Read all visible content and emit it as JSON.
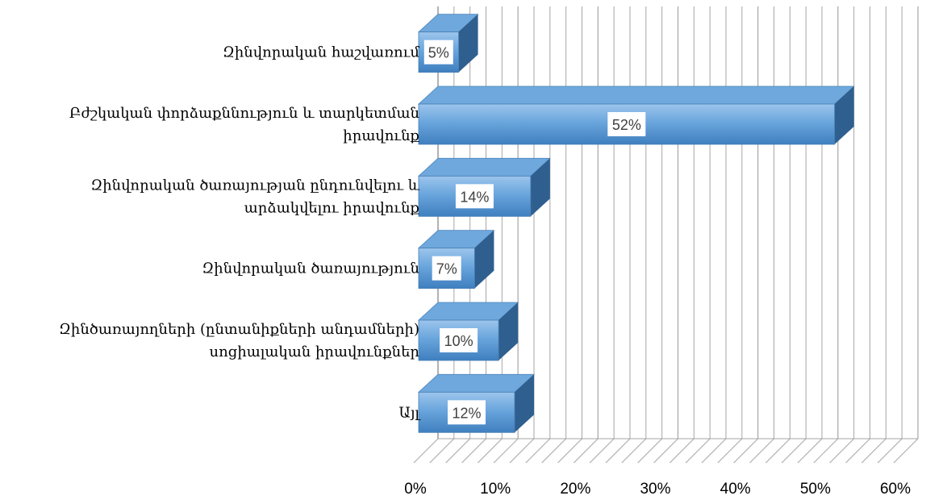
{
  "chart_data": {
    "type": "bar",
    "orientation": "horizontal",
    "three_d": true,
    "categories": [
      [
        "Զինվորական հաշվառում"
      ],
      [
        "Բժշկական փորձաքննություն և տարկետման",
        "իրավունք"
      ],
      [
        "Զինվորական ծառայության ընդունվելու և",
        "արձակվելու իրավունք"
      ],
      [
        "Զինվորական ծառայություն"
      ],
      [
        "Զինծառայողների (ընտանիքների անդամների)",
        "սոցիալական իրավունքներ"
      ],
      [
        "Այլ"
      ]
    ],
    "values": [
      5,
      52,
      14,
      7,
      10,
      12
    ],
    "data_labels": [
      "5%",
      "52%",
      "14%",
      "7%",
      "10%",
      "12%"
    ],
    "xlim": [
      0,
      60
    ],
    "x_ticks": [
      0,
      10,
      20,
      30,
      40,
      50,
      60
    ],
    "x_tick_labels": [
      "0%",
      "10%",
      "20%",
      "30%",
      "40%",
      "50%",
      "60%"
    ],
    "grid": true,
    "legend": "none",
    "colors": {
      "bar_front": "#5b9bd5",
      "bar_light": "#8fbde9",
      "bar_top": "#6fa8dc",
      "bar_side": "#2f5f8f",
      "grid": "#a6a6a6",
      "label_box": "#ffffff"
    }
  }
}
